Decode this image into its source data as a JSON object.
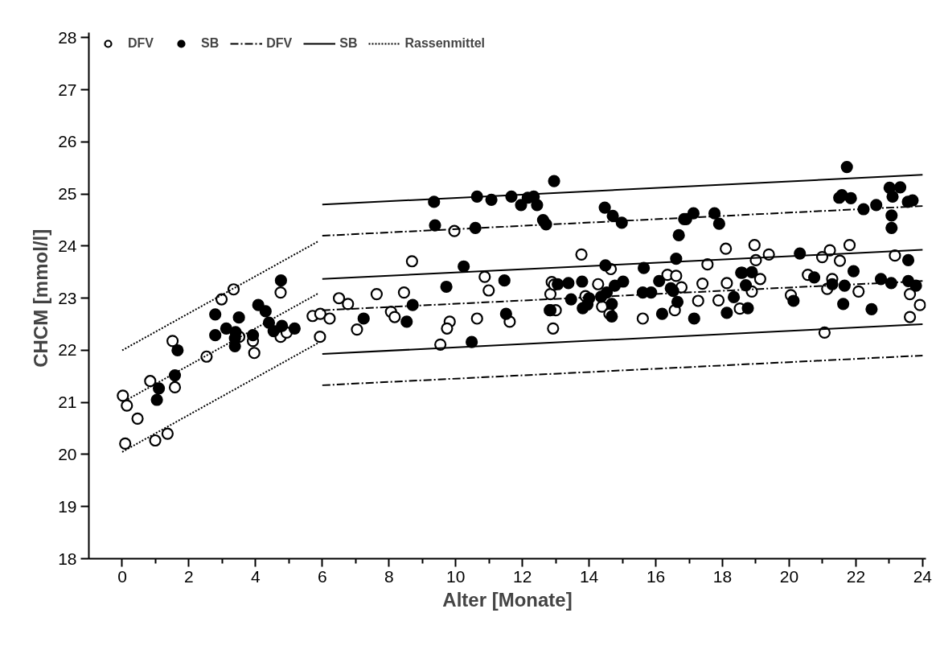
{
  "chart_data": {
    "type": "scatter",
    "xlabel": "Alter [Monate]",
    "ylabel": "CHCM  [mmol/l]",
    "xlim": [
      -1.0,
      24.1
    ],
    "ylim": [
      18,
      28.1
    ],
    "xticks": [
      0,
      2,
      4,
      6,
      8,
      10,
      12,
      14,
      16,
      18,
      20,
      22,
      24
    ],
    "yticks": [
      18,
      19,
      20,
      21,
      22,
      23,
      24,
      25,
      26,
      27,
      28
    ],
    "grid": false,
    "legend": "top left",
    "series": [
      {
        "name": "DFV",
        "marker": "circle",
        "color": "#ffffff",
        "x": [
          0.02,
          0.14,
          0.46,
          0.09,
          0.84,
          0.99,
          1.36,
          1.51,
          1.58,
          2.53,
          2.98,
          3.34,
          3.51,
          3.92,
          3.96,
          4.75,
          4.75,
          4.93,
          5.71,
          5.94,
          6.22,
          5.93,
          6.5,
          8.69,
          10.87,
          10.99,
          6.77,
          7.63,
          8.45,
          8.06,
          8.17,
          7.04,
          9.82,
          9.74,
          9.54,
          10.64,
          11.62,
          12.88,
          12.84,
          12.92,
          13.77,
          18.1,
          17.55,
          14.65,
          12.95,
          14.27,
          13.89,
          14.39,
          14.61,
          13.0,
          15.61,
          16.35,
          16.61,
          16.77,
          16.57,
          17.4,
          17.27,
          17.88,
          18.13,
          18.52,
          18.96,
          19.0,
          19.39,
          21.22,
          20.99,
          21.81,
          21.52,
          23.17,
          19.13,
          18.88,
          20.05,
          20.56,
          21.29,
          21.14,
          22.08,
          23.62,
          23.92,
          23.62,
          21.06,
          9.96
        ],
        "values": [
          21.13,
          20.94,
          20.69,
          20.21,
          21.41,
          20.27,
          20.4,
          22.18,
          21.29,
          21.88,
          22.98,
          23.17,
          22.26,
          22.18,
          21.95,
          23.11,
          22.26,
          22.34,
          22.66,
          22.7,
          22.61,
          22.26,
          23.0,
          23.71,
          23.41,
          23.15,
          22.89,
          23.08,
          23.11,
          22.74,
          22.64,
          22.4,
          22.55,
          22.42,
          22.11,
          22.61,
          22.55,
          23.31,
          23.08,
          22.42,
          23.84,
          23.95,
          23.65,
          23.56,
          23.26,
          23.27,
          23.04,
          22.84,
          22.7,
          22.77,
          22.61,
          23.45,
          23.43,
          23.21,
          22.77,
          23.28,
          22.95,
          22.96,
          23.29,
          22.8,
          24.02,
          23.73,
          23.84,
          23.92,
          23.79,
          24.02,
          23.72,
          23.82,
          23.37,
          23.13,
          23.06,
          23.45,
          23.37,
          23.18,
          23.13,
          23.08,
          22.87,
          22.64,
          22.34,
          24.29
        ]
      },
      {
        "name": "SB",
        "marker": "circle",
        "color": "#000000",
        "x": [
          2.79,
          2.79,
          3.12,
          3.5,
          3.4,
          3.38,
          3.38,
          3.92,
          4.08,
          4.3,
          4.4,
          4.54,
          4.79,
          4.76,
          5.17,
          1.66,
          1.58,
          1.1,
          1.04,
          10.24,
          9.72,
          11.46,
          8.71,
          7.24,
          8.53,
          10.48,
          11.51,
          12.82,
          16.69,
          16.61,
          14.49,
          15.64,
          13.06,
          13.38,
          13.79,
          15.02,
          14.77,
          16.1,
          16.45,
          13.46,
          14.0,
          14.53,
          14.36,
          15.61,
          15.86,
          16.52,
          16.65,
          13.81,
          13.95,
          12.84,
          14.68,
          14.68,
          16.19,
          17.15,
          18.13,
          18.34,
          18.56,
          20.32,
          18.59,
          18.88,
          18.7,
          18.76,
          20.13,
          20.75,
          21.29,
          21.66,
          21.93,
          21.62,
          22.47,
          22.75,
          23.06,
          23.57,
          23.57,
          23.8,
          23.07,
          23.07,
          22.23,
          22.61,
          23.56,
          23.7,
          21.73,
          21.5,
          21.58,
          21.85,
          23.01,
          23.33,
          23.1,
          17.13,
          17.76,
          17.9,
          16.91,
          9.35,
          9.38,
          10.59,
          10.64,
          11.07,
          11.67,
          12.16,
          12.34,
          11.96,
          12.44,
          12.95,
          12.62,
          12.71,
          14.47,
          14.71,
          14.98,
          16.85
        ],
        "values": [
          22.69,
          22.29,
          22.42,
          22.63,
          22.35,
          22.23,
          22.08,
          22.29,
          22.87,
          22.75,
          22.53,
          22.37,
          22.47,
          23.34,
          22.42,
          22.0,
          21.52,
          21.27,
          21.05,
          23.61,
          23.22,
          23.34,
          22.87,
          22.61,
          22.55,
          22.16,
          22.7,
          22.77,
          24.21,
          23.76,
          23.63,
          23.58,
          23.27,
          23.29,
          23.32,
          23.32,
          23.24,
          23.33,
          23.19,
          22.98,
          23.0,
          23.11,
          23.03,
          23.11,
          23.11,
          23.14,
          22.93,
          22.81,
          22.88,
          22.77,
          22.89,
          22.65,
          22.7,
          22.61,
          22.72,
          23.02,
          23.49,
          23.86,
          23.49,
          23.5,
          23.25,
          22.81,
          22.95,
          23.4,
          23.27,
          23.24,
          23.52,
          22.89,
          22.79,
          23.37,
          23.29,
          23.73,
          23.33,
          23.24,
          24.59,
          24.35,
          24.71,
          24.79,
          24.85,
          24.88,
          25.52,
          24.93,
          24.98,
          24.92,
          25.12,
          25.13,
          24.95,
          24.63,
          24.63,
          24.43,
          24.52,
          24.85,
          24.4,
          24.35,
          24.95,
          24.89,
          24.95,
          24.93,
          24.95,
          24.79,
          24.79,
          25.25,
          24.5,
          24.42,
          24.74,
          24.58,
          24.45,
          24.52
        ]
      },
      {
        "name": "DFV",
        "type": "line",
        "line_style": "dashed",
        "color": "#000000",
        "x": [
          6,
          24
        ],
        "values": [
          22.77,
          23.33
        ]
      },
      {
        "type": "line",
        "line_style": "dashed",
        "color": "#000000",
        "x": [
          6,
          24
        ],
        "values": [
          24.2,
          24.77
        ]
      },
      {
        "type": "line",
        "line_style": "dashed",
        "color": "#000000",
        "x": [
          6,
          24
        ],
        "values": [
          21.33,
          21.9
        ]
      },
      {
        "name": "SB",
        "type": "line",
        "line_style": "solid",
        "color": "#000000",
        "x": [
          6,
          24
        ],
        "values": [
          23.37,
          23.93
        ]
      },
      {
        "type": "line",
        "line_style": "solid",
        "color": "#000000",
        "x": [
          6,
          24
        ],
        "values": [
          24.8,
          25.37
        ]
      },
      {
        "type": "line",
        "line_style": "solid",
        "color": "#000000",
        "x": [
          6,
          24
        ],
        "values": [
          21.93,
          22.5
        ]
      },
      {
        "name": "Rassenmittel",
        "type": "line",
        "line_style": "dotted",
        "color": "#000000",
        "x": [
          0,
          5.9
        ],
        "values": [
          21.0,
          23.1
        ]
      },
      {
        "type": "line",
        "line_style": "dotted",
        "color": "#000000",
        "x": [
          0,
          5.9
        ],
        "values": [
          22.0,
          24.1
        ]
      },
      {
        "type": "line",
        "line_style": "dotted",
        "color": "#000000",
        "x": [
          0,
          5.9
        ],
        "values": [
          20.05,
          22.15
        ]
      }
    ]
  }
}
